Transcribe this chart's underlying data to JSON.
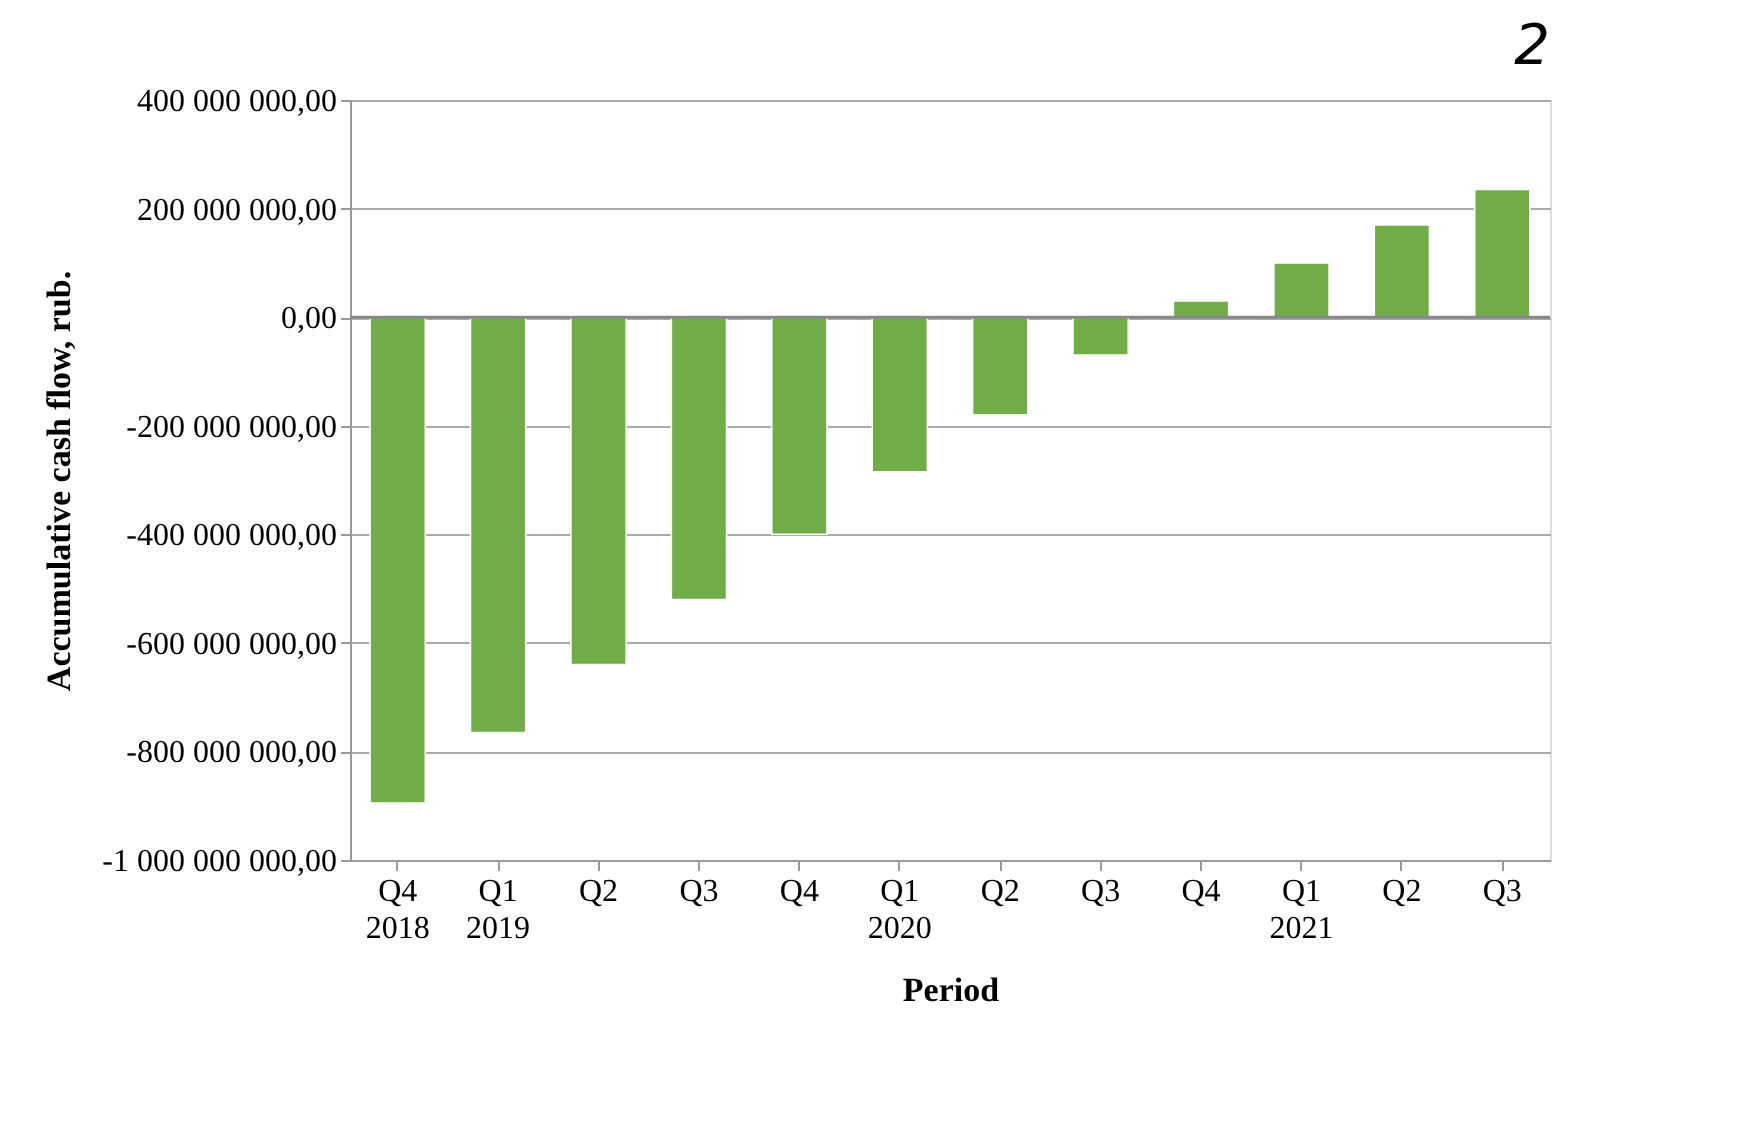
{
  "chart_data": {
    "type": "bar",
    "title": "2",
    "xlabel": "Period",
    "ylabel": "Accumulative cash flow, rub.",
    "categories": [
      "Q4",
      "Q1",
      "Q2",
      "Q3",
      "Q4",
      "Q1",
      "Q2",
      "Q3",
      "Q4",
      "Q1",
      "Q2",
      "Q3"
    ],
    "values": [
      -895000000,
      -765000000,
      -640000000,
      -520000000,
      -400000000,
      -285000000,
      -180000000,
      -70000000,
      30000000,
      100000000,
      170000000,
      235000000
    ],
    "color": "#70ad47",
    "ylim": [
      -1000000000,
      400000000
    ],
    "yticks": [
      {
        "value": -1000000000,
        "label": "-1 000 000 000,00"
      },
      {
        "value": -800000000,
        "label": "-800 000 000,00"
      },
      {
        "value": -600000000,
        "label": "-600 000 000,00"
      },
      {
        "value": -400000000,
        "label": "-400 000 000,00"
      },
      {
        "value": -200000000,
        "label": "-200 000 000,00"
      },
      {
        "value": 0,
        "label": "0,00"
      },
      {
        "value": 200000000,
        "label": "200 000 000,00"
      },
      {
        "value": 400000000,
        "label": "400 000 000,00"
      }
    ],
    "grid": "y",
    "annotations": [
      "2018",
      "2019",
      "2020",
      "2021"
    ]
  }
}
